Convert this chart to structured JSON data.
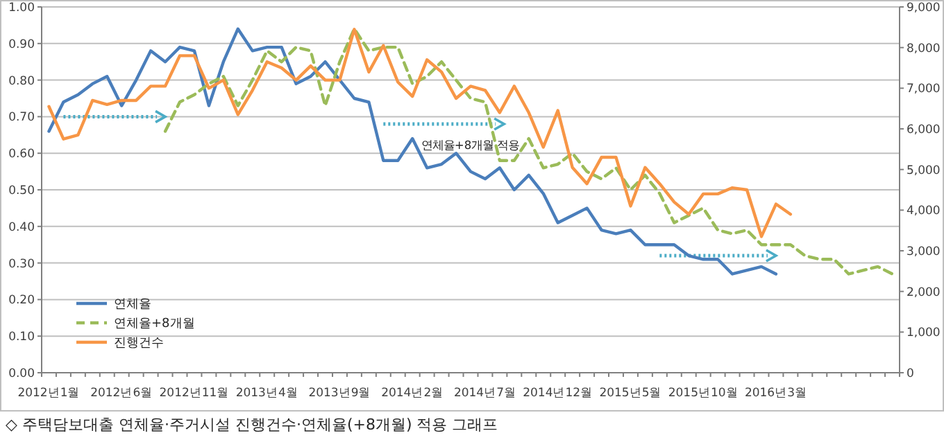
{
  "chart_data": {
    "type": "line",
    "categories": [
      "2012년1월",
      null,
      null,
      null,
      null,
      "2012년6월",
      null,
      null,
      null,
      null,
      "2012년11월",
      null,
      null,
      null,
      null,
      "2013년4월",
      null,
      null,
      null,
      null,
      "2013년9월",
      null,
      null,
      null,
      null,
      "2014년2월",
      null,
      null,
      null,
      null,
      "2014년7월",
      null,
      null,
      null,
      null,
      "2014년12월",
      null,
      null,
      null,
      null,
      "2015년5월",
      null,
      null,
      null,
      null,
      "2015년10월",
      null,
      null,
      null,
      null,
      "2016년3월",
      null,
      null,
      null,
      null,
      null,
      null,
      null,
      null
    ],
    "series": [
      {
        "name": "연체율",
        "color": "#4a7ebb",
        "values": [
          0.66,
          0.74,
          0.76,
          0.79,
          0.81,
          0.73,
          0.8,
          0.88,
          0.85,
          0.89,
          0.88,
          0.73,
          0.85,
          0.94,
          0.88,
          0.89,
          0.89,
          0.79,
          0.81,
          0.85,
          0.8,
          0.75,
          0.74,
          0.58,
          0.58,
          0.64,
          0.56,
          0.57,
          0.6,
          0.55,
          0.53,
          0.56,
          0.5,
          0.54,
          0.49,
          0.41,
          0.43,
          0.45,
          0.39,
          0.38,
          0.39,
          0.35,
          0.35,
          0.35,
          0.32,
          0.31,
          0.31,
          0.27,
          0.28,
          0.29,
          0.27,
          null,
          null,
          null,
          null,
          null,
          null,
          null,
          null
        ]
      },
      {
        "name": "연체율+8개월",
        "color": "#9bbb59",
        "line_style": "dashed",
        "values": [
          null,
          null,
          null,
          null,
          null,
          null,
          null,
          null,
          0.66,
          0.74,
          0.76,
          0.79,
          0.81,
          0.73,
          0.8,
          0.88,
          0.85,
          0.89,
          0.88,
          0.73,
          0.85,
          0.94,
          0.88,
          0.89,
          0.89,
          0.79,
          0.81,
          0.85,
          0.8,
          0.75,
          0.74,
          0.58,
          0.58,
          0.64,
          0.56,
          0.57,
          0.6,
          0.55,
          0.53,
          0.56,
          0.5,
          0.54,
          0.49,
          0.41,
          0.43,
          0.45,
          0.39,
          0.38,
          0.39,
          0.35,
          0.35,
          0.35,
          0.32,
          0.31,
          0.31,
          0.27,
          0.28,
          0.29,
          0.27
        ]
      },
      {
        "name": "진행건수",
        "color": "#f79646",
        "axis": "y2",
        "values": [
          6550,
          5750,
          5850,
          6700,
          6600,
          6700,
          6700,
          7050,
          7050,
          7800,
          7800,
          7000,
          7200,
          6350,
          6950,
          7650,
          7500,
          7200,
          7550,
          7200,
          7200,
          8450,
          7400,
          8050,
          7150,
          6800,
          7700,
          7400,
          6750,
          7050,
          6950,
          6400,
          7050,
          6400,
          5550,
          6450,
          5050,
          4650,
          5300,
          5300,
          4100,
          5050,
          4650,
          4200,
          3900,
          4400,
          4400,
          4550,
          4500,
          3350,
          4150,
          3900,
          null,
          null,
          null,
          null,
          null,
          null,
          null
        ]
      }
    ],
    "ylim": [
      0,
      1
    ],
    "yticks": [
      {
        "value": 0,
        "label": "0.00"
      },
      {
        "value": 0.1,
        "label": "0.10"
      },
      {
        "value": 0.2,
        "label": "0.20"
      },
      {
        "value": 0.3,
        "label": "0.30"
      },
      {
        "value": 0.4,
        "label": "0.40"
      },
      {
        "value": 0.5,
        "label": "0.50"
      },
      {
        "value": 0.6,
        "label": "0.60"
      },
      {
        "value": 0.7,
        "label": "0.70"
      },
      {
        "value": 0.8,
        "label": "0.80"
      },
      {
        "value": 0.9,
        "label": "0.90"
      },
      {
        "value": 1,
        "label": "1.00"
      }
    ],
    "y2lim": [
      0,
      9000
    ],
    "y2ticks": [
      0,
      {
        "value": 1000,
        "label": "1,000"
      },
      {
        "value": 2000,
        "label": "2,000"
      },
      {
        "value": 3000,
        "label": "3,000"
      },
      {
        "value": 4000,
        "label": "4,000"
      },
      {
        "value": 5000,
        "label": "5,000"
      },
      {
        "value": 6000,
        "label": "6,000"
      },
      {
        "value": 7000,
        "label": "7,000"
      },
      {
        "value": 8000,
        "label": "8,000"
      },
      {
        "value": 9000,
        "label": "9,000"
      }
    ],
    "grid": "y",
    "legend": "bottom left",
    "marker": "none",
    "annotations": [
      "연체율+8개월 적용",
      "◇ 주택담보대출 연체율·주거시설 진행건수·연체율(+8개월) 적용 그래프"
    ]
  }
}
